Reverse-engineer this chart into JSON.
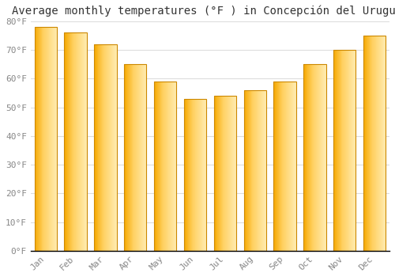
{
  "title": "Average monthly temperatures (°F ) in Concepción del Uruguay",
  "months": [
    "Jan",
    "Feb",
    "Mar",
    "Apr",
    "May",
    "Jun",
    "Jul",
    "Aug",
    "Sep",
    "Oct",
    "Nov",
    "Dec"
  ],
  "values": [
    78,
    76,
    72,
    65,
    59,
    53,
    54,
    56,
    59,
    65,
    70,
    75
  ],
  "ylim": [
    0,
    80
  ],
  "yticks": [
    0,
    10,
    20,
    30,
    40,
    50,
    60,
    70,
    80
  ],
  "ytick_labels": [
    "0°F",
    "10°F",
    "20°F",
    "30°F",
    "40°F",
    "50°F",
    "60°F",
    "70°F",
    "80°F"
  ],
  "bar_color_left": "#F5A800",
  "bar_color_mid": "#FFD060",
  "bar_color_right": "#FFEBB0",
  "background_color": "#FFFFFF",
  "grid_color": "#DDDDDD",
  "title_fontsize": 10,
  "tick_fontsize": 8,
  "bar_width": 0.75
}
